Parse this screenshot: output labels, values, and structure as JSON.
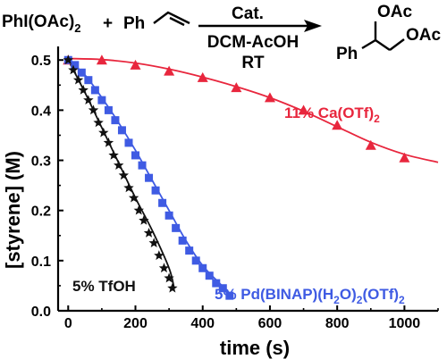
{
  "scheme": {
    "reactant1": "PhI(OAc)",
    "reactant1_sub": "2",
    "plus": "+",
    "reactant2": "Ph",
    "arrow_top": "Cat.",
    "arrow_bottom1": "DCM-AcOH",
    "arrow_bottom2": "RT",
    "product_oac_top": "OAc",
    "product_oac_right": "OAc",
    "product_ph": "Ph"
  },
  "colors": {
    "calcium": "#e8263d",
    "palladium": "#3f5be3",
    "tfoh": "#111111",
    "axis": "#000000"
  },
  "chart_data": {
    "type": "scatter",
    "title": "",
    "xlabel": "time (s)",
    "ylabel": "[styrene] (M)",
    "xlim": [
      -30,
      1100
    ],
    "ylim": [
      0,
      0.52
    ],
    "x_ticks": [
      0,
      200,
      400,
      600,
      800,
      1000
    ],
    "y_ticks": [
      0.0,
      0.1,
      0.2,
      0.3,
      0.4,
      0.5
    ],
    "x_tick_labels": [
      "0",
      "200",
      "400",
      "600",
      "800",
      "1000"
    ],
    "y_tick_labels": [
      "0.0",
      "0.1",
      "0.2",
      "0.3",
      "0.4",
      "0.5"
    ],
    "grid": false,
    "series": [
      {
        "name": "11% Ca(OTf)2",
        "label_main": "11% Ca(OTf)",
        "label_sub": "2",
        "marker": "triangle",
        "color_key": "calcium",
        "points": [
          [
            0,
            0.5
          ],
          [
            100,
            0.5
          ],
          [
            200,
            0.49
          ],
          [
            300,
            0.478
          ],
          [
            400,
            0.465
          ],
          [
            500,
            0.445
          ],
          [
            600,
            0.425
          ],
          [
            700,
            0.4
          ],
          [
            800,
            0.37
          ],
          [
            900,
            0.33
          ],
          [
            1000,
            0.305
          ]
        ],
        "fit": [
          [
            0,
            0.503
          ],
          [
            100,
            0.501
          ],
          [
            200,
            0.494
          ],
          [
            300,
            0.482
          ],
          [
            400,
            0.466
          ],
          [
            500,
            0.447
          ],
          [
            600,
            0.425
          ],
          [
            700,
            0.398
          ],
          [
            800,
            0.367
          ],
          [
            900,
            0.336
          ],
          [
            1000,
            0.312
          ],
          [
            1100,
            0.296
          ]
        ]
      },
      {
        "name": "5% Pd(BINAP)(H2O)2(OTf)2",
        "label_parts": [
          "5% Pd(BINAP)(H",
          "2",
          "O)",
          "2",
          "(OTf)",
          "2"
        ],
        "marker": "square",
        "color_key": "palladium",
        "points": [
          [
            0,
            0.5
          ],
          [
            20,
            0.49
          ],
          [
            40,
            0.475
          ],
          [
            60,
            0.46
          ],
          [
            80,
            0.44
          ],
          [
            100,
            0.42
          ],
          [
            120,
            0.4
          ],
          [
            140,
            0.38
          ],
          [
            160,
            0.36
          ],
          [
            180,
            0.335
          ],
          [
            200,
            0.31
          ],
          [
            220,
            0.29
          ],
          [
            240,
            0.265
          ],
          [
            260,
            0.24
          ],
          [
            280,
            0.215
          ],
          [
            300,
            0.19
          ],
          [
            320,
            0.165
          ],
          [
            340,
            0.14
          ],
          [
            360,
            0.12
          ],
          [
            380,
            0.1
          ],
          [
            400,
            0.085
          ],
          [
            420,
            0.07
          ],
          [
            440,
            0.055
          ],
          [
            460,
            0.045
          ],
          [
            480,
            0.03
          ]
        ],
        "fit": [
          [
            0,
            0.5
          ],
          [
            50,
            0.47
          ],
          [
            100,
            0.425
          ],
          [
            150,
            0.375
          ],
          [
            200,
            0.32
          ],
          [
            250,
            0.26
          ],
          [
            300,
            0.2
          ],
          [
            350,
            0.14
          ],
          [
            400,
            0.09
          ],
          [
            450,
            0.055
          ],
          [
            480,
            0.035
          ]
        ]
      },
      {
        "name": "5% TfOH",
        "label_main": "5% TfOH",
        "marker": "star",
        "color_key": "tfoh",
        "points": [
          [
            0,
            0.5
          ],
          [
            15,
            0.48
          ],
          [
            30,
            0.46
          ],
          [
            45,
            0.44
          ],
          [
            60,
            0.42
          ],
          [
            75,
            0.4
          ],
          [
            90,
            0.375
          ],
          [
            105,
            0.355
          ],
          [
            120,
            0.335
          ],
          [
            135,
            0.31
          ],
          [
            150,
            0.29
          ],
          [
            165,
            0.27
          ],
          [
            180,
            0.245
          ],
          [
            195,
            0.225
          ],
          [
            210,
            0.2
          ],
          [
            225,
            0.18
          ],
          [
            240,
            0.155
          ],
          [
            255,
            0.135
          ],
          [
            270,
            0.11
          ],
          [
            285,
            0.085
          ],
          [
            300,
            0.065
          ],
          [
            310,
            0.045
          ]
        ],
        "fit": [
          [
            0,
            0.5
          ],
          [
            50,
            0.435
          ],
          [
            100,
            0.365
          ],
          [
            150,
            0.295
          ],
          [
            200,
            0.225
          ],
          [
            250,
            0.16
          ],
          [
            300,
            0.085
          ],
          [
            315,
            0.045
          ]
        ]
      }
    ]
  }
}
